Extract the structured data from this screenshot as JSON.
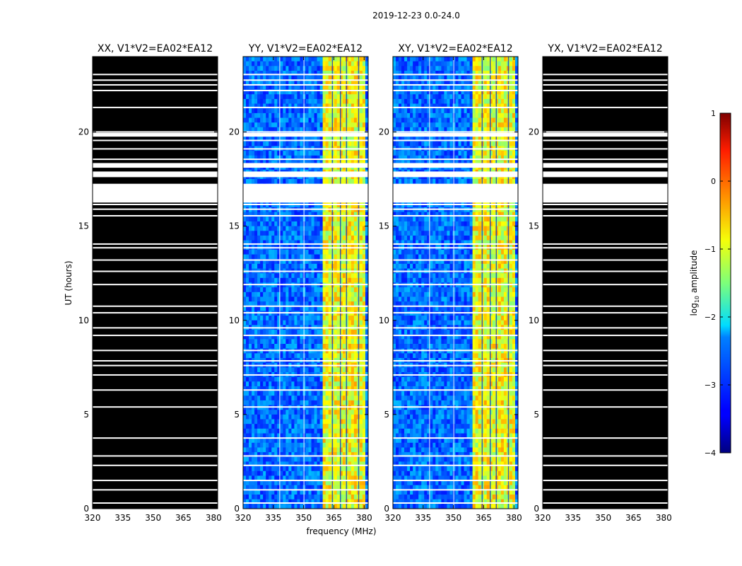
{
  "chart_data": {
    "type": "heatmap",
    "suptitle": "2019-12-23 0.0-24.0",
    "xlabel": "frequency (MHz)",
    "ylabel": "UT (hours)",
    "xlim": [
      320,
      382
    ],
    "ylim": [
      0,
      24
    ],
    "xticks": [
      "320",
      "335",
      "350",
      "365",
      "380"
    ],
    "yticks": [
      "0",
      "5",
      "10",
      "15",
      "20"
    ],
    "panels": [
      {
        "title": "XX, V1*V2=EA02*EA12",
        "pol": "XX",
        "mode": "flagged"
      },
      {
        "title": "YY, V1*V2=EA02*EA12",
        "pol": "YY",
        "mode": "data"
      },
      {
        "title": "XY, V1*V2=EA02*EA12",
        "pol": "XY",
        "mode": "data"
      },
      {
        "title": "YX, V1*V2=EA02*EA12",
        "pol": "YX",
        "mode": "flagged"
      }
    ],
    "colorbar": {
      "label": "log10 amplitude",
      "label_base": "log",
      "label_sub": "10",
      "label_rest": " amplitude",
      "range": [
        -4,
        1
      ],
      "ticks": [
        "1",
        "0",
        "−1",
        "−2",
        "−3",
        "−4"
      ],
      "colormap": "jet"
    },
    "bright_band_mhz": [
      360,
      380
    ],
    "gap_rows_ut": [
      0.3,
      1.0,
      1.5,
      2.3,
      2.8,
      3.75,
      5.4,
      6.3,
      7.1,
      7.6,
      7.85,
      8.4,
      9.2,
      9.6,
      10.4,
      10.75,
      11.9,
      12.6,
      13.2,
      13.85,
      14.05,
      15.55,
      15.9,
      16.15,
      18.55,
      19.1,
      19.55,
      20.0,
      21.3,
      22.2,
      22.5,
      22.75,
      23.05
    ],
    "gap_bands_ut": [
      [
        16.25,
        17.25
      ],
      [
        17.6,
        17.9
      ],
      [
        19.75,
        19.95
      ],
      [
        18.1,
        18.35
      ]
    ]
  }
}
